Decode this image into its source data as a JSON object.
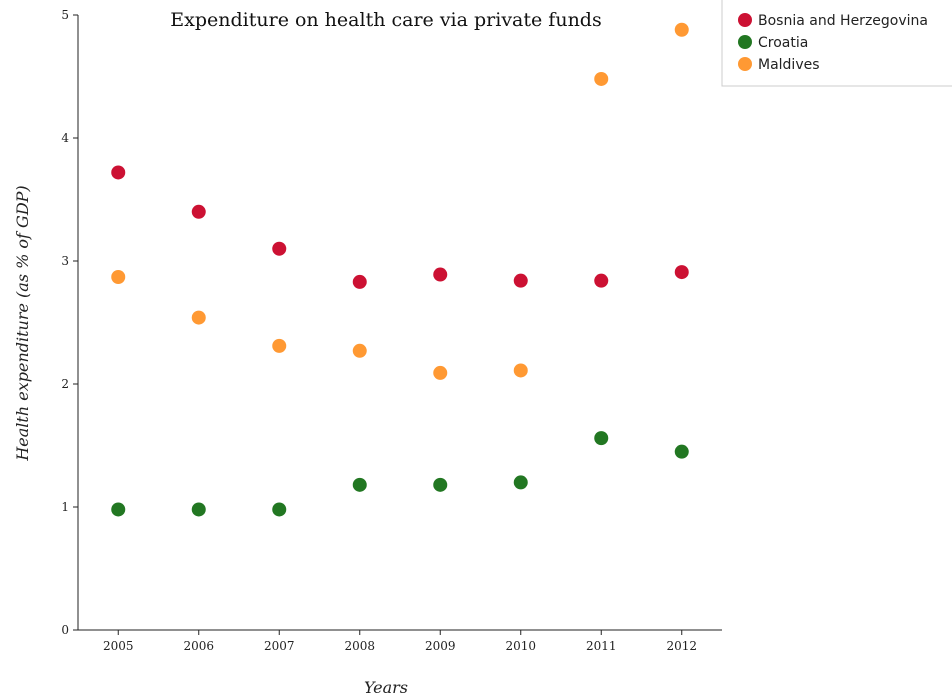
{
  "chart_data": {
    "type": "scatter",
    "title": "Expenditure on health care via private funds",
    "xlabel": "Years",
    "ylabel": "Health expenditure (as % of GDP)",
    "categories": [
      "2005",
      "2006",
      "2007",
      "2008",
      "2009",
      "2010",
      "2011",
      "2012"
    ],
    "ylim": [
      0,
      5
    ],
    "yticks": [
      "0",
      "1",
      "2",
      "3",
      "4",
      "5"
    ],
    "grid": false,
    "legend_position": "top-right",
    "series": [
      {
        "name": "Bosnia and Herzegovina",
        "color": "#cc1133",
        "values": [
          3.72,
          3.4,
          3.1,
          2.83,
          2.89,
          2.84,
          2.84,
          2.91
        ]
      },
      {
        "name": "Croatia",
        "color": "#227722",
        "values": [
          0.98,
          0.98,
          0.98,
          1.18,
          1.18,
          1.2,
          1.56,
          1.45
        ]
      },
      {
        "name": "Maldives",
        "color": "#ff9933",
        "values": [
          2.87,
          2.54,
          2.31,
          2.27,
          2.09,
          2.11,
          4.48,
          4.88
        ]
      }
    ]
  }
}
